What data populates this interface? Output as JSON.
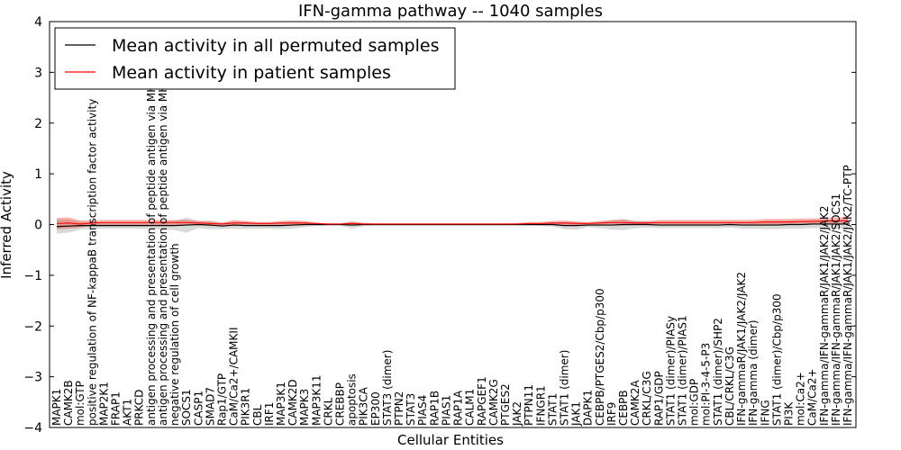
{
  "chart_data": {
    "type": "line",
    "title": "IFN-gamma pathway -- 1040 samples",
    "xlabel": "Cellular Entities",
    "ylabel": "Inferred Activity",
    "ylim": [
      -4,
      4
    ],
    "yticks": [
      -4,
      -3,
      -2,
      -1,
      0,
      1,
      2,
      3,
      4
    ],
    "ytick_labels": [
      "−4",
      "−3",
      "−2",
      "−1",
      "0",
      "1",
      "2",
      "3",
      "4"
    ],
    "legend": {
      "position": "top-left",
      "entries": [
        {
          "label": "Mean activity in all permuted samples",
          "color": "#000000"
        },
        {
          "label": "Mean activity in patient samples",
          "color": "#ff0000"
        }
      ]
    },
    "categories": [
      "MAPK1",
      "CAMK2B",
      "mol:GTP",
      "positive regulation of NF-kappaB transcription factor activity",
      "MAP2K1",
      "FRAP1",
      "AKT1",
      "PRKCD",
      "antigen processing and presentation of peptide antigen via MHC class I",
      "antigen processing and presentation of peptide antigen via MHC class II",
      "negative regulation of cell growth",
      "SOCS1",
      "CASP1",
      "SMAD7",
      "Rap1/GTP",
      "CaM/Ca2+/CAMKII",
      "PIK3R1",
      "CBL",
      "IRF1",
      "MAP3K1",
      "CAMK2D",
      "MAPK3",
      "MAP3K11",
      "CRKL",
      "CREBBP",
      "apoptosis",
      "PIK3CA",
      "EP300",
      "STAT3 (dimer)",
      "PTPN2",
      "STAT3",
      "PIAS4",
      "RAP1B",
      "PIAS1",
      "RAP1A",
      "CALM1",
      "RAPGEF1",
      "CAMK2G",
      "PTGES2",
      "JAK2",
      "PTPN11",
      "IFNGR1",
      "STAT1",
      "STAT1 (dimer)",
      "JAK1",
      "DAPK1",
      "CEBPB/PTGES2/Cbp/p300",
      "IRF9",
      "CEBPB",
      "CAMK2A",
      "CRKL/C3G",
      "RAP1/GDP",
      "STAT1 (dimer)/PIASy",
      "STAT1 (dimer)/PIAS1",
      "mol:GDP",
      "mol:PI-3-4-5-P3",
      "STAT1 (dimer)/SHP2",
      "CBL/CRKL/C3G",
      "IFN-gammaR/JAK1/JAK2/JAK2",
      "IFN-gamma (dimer)",
      "IFNG",
      "STAT1 (dimer)/Cbp/p300",
      "PI3K",
      "mol:Ca2+",
      "CaM/Ca2+",
      "IFN-gamma/IFN-gammaR/JAK1/JAK2/JAK2",
      "IFN-gamma/IFN-gammaR/JAK1/JAK2/SOCS1",
      "IFN-gamma/IFN-gammaR/JAK1/JAK2/JAK2/TC-PTP"
    ],
    "series": [
      {
        "name": "Mean activity in all permuted samples",
        "color": "#000000",
        "values": [
          -0.04,
          -0.03,
          -0.02,
          -0.02,
          -0.02,
          -0.02,
          -0.02,
          -0.02,
          -0.02,
          -0.02,
          -0.02,
          -0.01,
          0,
          -0.01,
          -0.03,
          -0.01,
          -0.02,
          -0.02,
          -0.02,
          -0.02,
          -0.01,
          0,
          0,
          0,
          0,
          -0.01,
          0,
          0,
          0,
          0,
          0,
          0,
          0,
          0,
          0,
          0,
          0,
          0,
          0,
          0,
          0,
          0,
          0,
          -0.02,
          -0.02,
          -0.01,
          -0.01,
          -0.01,
          0,
          0,
          0,
          -0.01,
          -0.01,
          -0.01,
          -0.01,
          -0.01,
          -0.01,
          0,
          -0.01,
          -0.01,
          -0.01,
          -0.01,
          0,
          0,
          0.01,
          0.01,
          0.01,
          0.01
        ],
        "band": [
          0.14,
          0.13,
          0.08,
          0.06,
          0.06,
          0.06,
          0.06,
          0.06,
          0.07,
          0.08,
          0.09,
          0.15,
          0.07,
          0.08,
          0.06,
          0.07,
          0.07,
          0.06,
          0.06,
          0.07,
          0.07,
          0.05,
          0.03,
          0.02,
          0.02,
          0.07,
          0.03,
          0.02,
          0.02,
          0.02,
          0.02,
          0.02,
          0.02,
          0.02,
          0.02,
          0.02,
          0.02,
          0.02,
          0.02,
          0.02,
          0.02,
          0.03,
          0.04,
          0.07,
          0.08,
          0.04,
          0.06,
          0.09,
          0.11,
          0.07,
          0.06,
          0.06,
          0.06,
          0.06,
          0.06,
          0.06,
          0.06,
          0.06,
          0.07,
          0.07,
          0.08,
          0.08,
          0.08,
          0.08,
          0.08,
          0.08,
          0.09,
          0.1
        ]
      },
      {
        "name": "Mean activity in patient samples",
        "color": "#ff0000",
        "values": [
          0.02,
          0.03,
          0.01,
          0.03,
          0.04,
          0.04,
          0.04,
          0.04,
          0.04,
          0.04,
          0.04,
          0.04,
          0.03,
          0.02,
          0.01,
          0.03,
          0.03,
          0.02,
          0.02,
          0.03,
          0.03,
          0.03,
          0.02,
          0.01,
          0.01,
          0.02,
          0.01,
          0.01,
          0.01,
          0.01,
          0.01,
          0.01,
          0.01,
          0.01,
          0.01,
          0.01,
          0.01,
          0.01,
          0.01,
          0.01,
          0.02,
          0.02,
          0.03,
          0.03,
          0.02,
          0.02,
          0.03,
          0.04,
          0.04,
          0.03,
          0.03,
          0.04,
          0.04,
          0.04,
          0.04,
          0.04,
          0.04,
          0.04,
          0.04,
          0.04,
          0.05,
          0.05,
          0.05,
          0.06,
          0.06,
          0.07,
          0.07,
          0.08
        ],
        "band": [
          0.11,
          0.11,
          0.07,
          0.05,
          0.05,
          0.05,
          0.05,
          0.05,
          0.05,
          0.05,
          0.05,
          0.05,
          0.04,
          0.05,
          0.03,
          0.06,
          0.04,
          0.03,
          0.03,
          0.04,
          0.05,
          0.04,
          0.02,
          0.01,
          0.01,
          0.04,
          0.02,
          0.01,
          0.01,
          0.01,
          0.01,
          0.01,
          0.01,
          0.01,
          0.01,
          0.01,
          0.01,
          0.01,
          0.01,
          0.02,
          0.03,
          0.03,
          0.04,
          0.05,
          0.04,
          0.03,
          0.04,
          0.05,
          0.06,
          0.04,
          0.04,
          0.05,
          0.05,
          0.05,
          0.05,
          0.05,
          0.05,
          0.05,
          0.05,
          0.05,
          0.06,
          0.06,
          0.06,
          0.06,
          0.06,
          0.06,
          0.07,
          0.07
        ]
      }
    ]
  }
}
